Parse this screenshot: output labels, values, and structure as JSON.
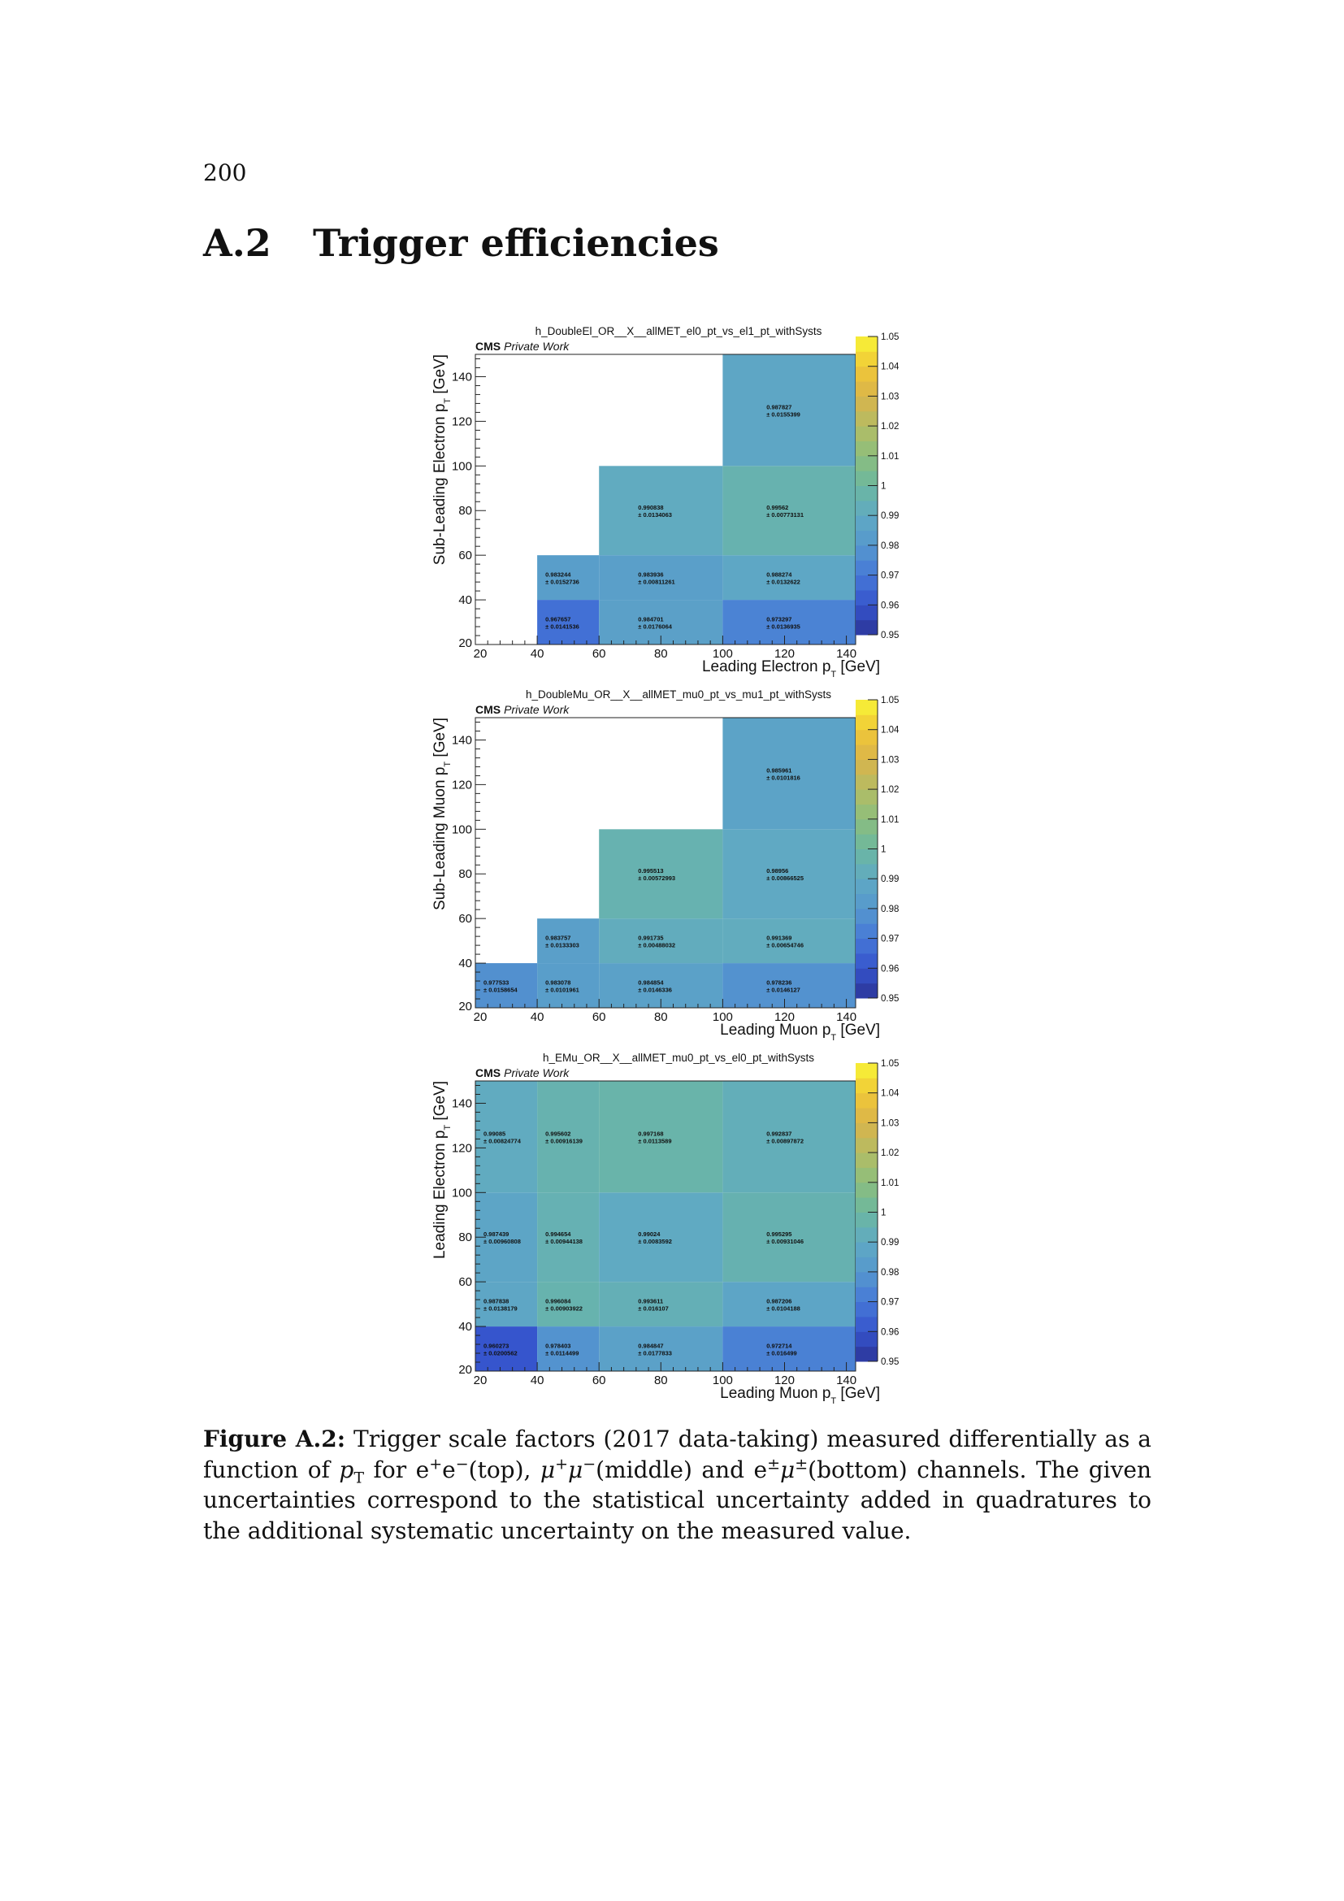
{
  "page": {
    "number": "200"
  },
  "section": {
    "number": "A.2",
    "title": "Trigger efficiencies"
  },
  "chart_data": [
    {
      "type": "heatmap",
      "title": "h_DoubleEl_OR__X__allMET_el0_pt_vs_el1_pt_withSysts",
      "label_bold": "CMS",
      "label_italic": "Private Work",
      "xlabel": "Leading Electron p_T [GeV]",
      "xlabel_main": "Leading Electron p",
      "xlabel_sub": "T",
      "xlabel_unit": " [GeV]",
      "ylabel": "Sub-Leading Electron p_T [GeV]",
      "ylabel_main": "Sub-Leading Electron p",
      "ylabel_sub": "T",
      "ylabel_unit": " [GeV]",
      "xlim": [
        20,
        143
      ],
      "ylim": [
        20,
        150
      ],
      "x_edges": [
        20,
        40,
        60,
        100,
        143
      ],
      "y_edges": [
        20,
        40,
        60,
        100,
        150
      ],
      "x_ticks": [
        "20",
        "40",
        "60",
        "80",
        "100",
        "120",
        "140"
      ],
      "y_ticks": [
        "20",
        "40",
        "60",
        "80",
        "100",
        "120",
        "140"
      ],
      "zlim": [
        0.95,
        1.05
      ],
      "z_ticks": [
        "0.95",
        "0.96",
        "0.97",
        "0.98",
        "0.99",
        "1",
        "1.01",
        "1.02",
        "1.03",
        "1.04",
        "1.05"
      ],
      "cells": [
        {
          "xb": 1,
          "yb": 0,
          "value": "0.967657",
          "error": "0.0141536"
        },
        {
          "xb": 2,
          "yb": 0,
          "value": "0.984701",
          "error": "0.0176064"
        },
        {
          "xb": 3,
          "yb": 0,
          "value": "0.973297",
          "error": "0.0136935"
        },
        {
          "xb": 1,
          "yb": 1,
          "value": "0.983244",
          "error": "0.0152736"
        },
        {
          "xb": 2,
          "yb": 1,
          "value": "0.983936",
          "error": "0.00811261"
        },
        {
          "xb": 3,
          "yb": 1,
          "value": "0.988274",
          "error": "0.0132622"
        },
        {
          "xb": 2,
          "yb": 2,
          "value": "0.990838",
          "error": "0.0134063"
        },
        {
          "xb": 3,
          "yb": 2,
          "value": "0.99562",
          "error": "0.00773131"
        },
        {
          "xb": 3,
          "yb": 3,
          "value": "0.987827",
          "error": "0.0155399"
        }
      ]
    },
    {
      "type": "heatmap",
      "title": "h_DoubleMu_OR__X__allMET_mu0_pt_vs_mu1_pt_withSysts",
      "label_bold": "CMS",
      "label_italic": "Private Work",
      "xlabel": "Leading Muon p_T [GeV]",
      "xlabel_main": "Leading Muon p",
      "xlabel_sub": "T",
      "xlabel_unit": " [GeV]",
      "ylabel": "Sub-Leading Muon p_T [GeV]",
      "ylabel_main": "Sub-Leading Muon p",
      "ylabel_sub": "T",
      "ylabel_unit": " [GeV]",
      "xlim": [
        20,
        143
      ],
      "ylim": [
        20,
        150
      ],
      "x_edges": [
        20,
        40,
        60,
        100,
        143
      ],
      "y_edges": [
        20,
        40,
        60,
        100,
        150
      ],
      "x_ticks": [
        "20",
        "40",
        "60",
        "80",
        "100",
        "120",
        "140"
      ],
      "y_ticks": [
        "20",
        "40",
        "60",
        "80",
        "100",
        "120",
        "140"
      ],
      "zlim": [
        0.95,
        1.05
      ],
      "z_ticks": [
        "0.95",
        "0.96",
        "0.97",
        "0.98",
        "0.99",
        "1",
        "1.01",
        "1.02",
        "1.03",
        "1.04",
        "1.05"
      ],
      "cells": [
        {
          "xb": 0,
          "yb": 0,
          "value": "0.977533",
          "error": "0.0158654"
        },
        {
          "xb": 1,
          "yb": 0,
          "value": "0.983078",
          "error": "0.0101961"
        },
        {
          "xb": 2,
          "yb": 0,
          "value": "0.984854",
          "error": "0.0146336"
        },
        {
          "xb": 3,
          "yb": 0,
          "value": "0.978236",
          "error": "0.0146127"
        },
        {
          "xb": 1,
          "yb": 1,
          "value": "0.983757",
          "error": "0.0133303"
        },
        {
          "xb": 2,
          "yb": 1,
          "value": "0.991735",
          "error": "0.00488032"
        },
        {
          "xb": 3,
          "yb": 1,
          "value": "0.991369",
          "error": "0.00654746"
        },
        {
          "xb": 2,
          "yb": 2,
          "value": "0.995513",
          "error": "0.00572993"
        },
        {
          "xb": 3,
          "yb": 2,
          "value": "0.98956",
          "error": "0.00866525"
        },
        {
          "xb": 3,
          "yb": 3,
          "value": "0.985961",
          "error": "0.0101816"
        }
      ]
    },
    {
      "type": "heatmap",
      "title": "h_EMu_OR__X__allMET_mu0_pt_vs_el0_pt_withSysts",
      "label_bold": "CMS",
      "label_italic": "Private Work",
      "xlabel": "Leading Muon p_T [GeV]",
      "xlabel_main": "Leading Muon p",
      "xlabel_sub": "T",
      "xlabel_unit": " [GeV]",
      "ylabel": "Leading Electron p_T [GeV]",
      "ylabel_main": "Leading Electron p",
      "ylabel_sub": "T",
      "ylabel_unit": " [GeV]",
      "xlim": [
        20,
        143
      ],
      "ylim": [
        20,
        150
      ],
      "x_edges": [
        20,
        40,
        60,
        100,
        143
      ],
      "y_edges": [
        20,
        40,
        60,
        100,
        150
      ],
      "x_ticks": [
        "20",
        "40",
        "60",
        "80",
        "100",
        "120",
        "140"
      ],
      "y_ticks": [
        "20",
        "40",
        "60",
        "80",
        "100",
        "120",
        "140"
      ],
      "zlim": [
        0.95,
        1.05
      ],
      "z_ticks": [
        "0.95",
        "0.96",
        "0.97",
        "0.98",
        "0.99",
        "1",
        "1.01",
        "1.02",
        "1.03",
        "1.04",
        "1.05"
      ],
      "cells": [
        {
          "xb": 0,
          "yb": 0,
          "value": "0.960273",
          "error": "0.0200562"
        },
        {
          "xb": 1,
          "yb": 0,
          "value": "0.978403",
          "error": "0.0114499"
        },
        {
          "xb": 2,
          "yb": 0,
          "value": "0.984847",
          "error": "0.0177833"
        },
        {
          "xb": 3,
          "yb": 0,
          "value": "0.972714",
          "error": "0.016499"
        },
        {
          "xb": 0,
          "yb": 1,
          "value": "0.987838",
          "error": "0.0138179"
        },
        {
          "xb": 1,
          "yb": 1,
          "value": "0.996084",
          "error": "0.00903922"
        },
        {
          "xb": 2,
          "yb": 1,
          "value": "0.993611",
          "error": "0.016107"
        },
        {
          "xb": 3,
          "yb": 1,
          "value": "0.987206",
          "error": "0.0104188"
        },
        {
          "xb": 0,
          "yb": 2,
          "value": "0.987439",
          "error": "0.00960808"
        },
        {
          "xb": 1,
          "yb": 2,
          "value": "0.994654",
          "error": "0.00944138"
        },
        {
          "xb": 2,
          "yb": 2,
          "value": "0.99024",
          "error": "0.0083592"
        },
        {
          "xb": 3,
          "yb": 2,
          "value": "0.995295",
          "error": "0.00931046"
        },
        {
          "xb": 0,
          "yb": 3,
          "value": "0.99085",
          "error": "0.00824774"
        },
        {
          "xb": 1,
          "yb": 3,
          "value": "0.995602",
          "error": "0.00916139"
        },
        {
          "xb": 2,
          "yb": 3,
          "value": "0.997168",
          "error": "0.0113589"
        },
        {
          "xb": 3,
          "yb": 3,
          "value": "0.992837",
          "error": "0.00897872"
        }
      ]
    }
  ],
  "caption": {
    "label": "Figure A.2:",
    "segments": [
      {
        "t": "n",
        "s": " Trigger scale factors (2017 data-taking) measured differentially as a function of "
      },
      {
        "t": "i",
        "s": "p"
      },
      {
        "t": "sub",
        "s": "T"
      },
      {
        "t": "n",
        "s": " for e"
      },
      {
        "t": "sup",
        "s": "+"
      },
      {
        "t": "n",
        "s": "e"
      },
      {
        "t": "sup",
        "s": "−"
      },
      {
        "t": "n",
        "s": "(top), "
      },
      {
        "t": "i",
        "s": "μ"
      },
      {
        "t": "sup",
        "s": "+"
      },
      {
        "t": "i",
        "s": "μ"
      },
      {
        "t": "sup",
        "s": "−"
      },
      {
        "t": "n",
        "s": "(middle) and e"
      },
      {
        "t": "sup",
        "s": "±"
      },
      {
        "t": "i",
        "s": "μ"
      },
      {
        "t": "sup",
        "s": "±"
      },
      {
        "t": "n",
        "s": "(bottom) channels. The given uncertainties correspond to the statistical uncertainty added in quadratures to the additional systematic uncertainty on the measured value."
      }
    ]
  }
}
